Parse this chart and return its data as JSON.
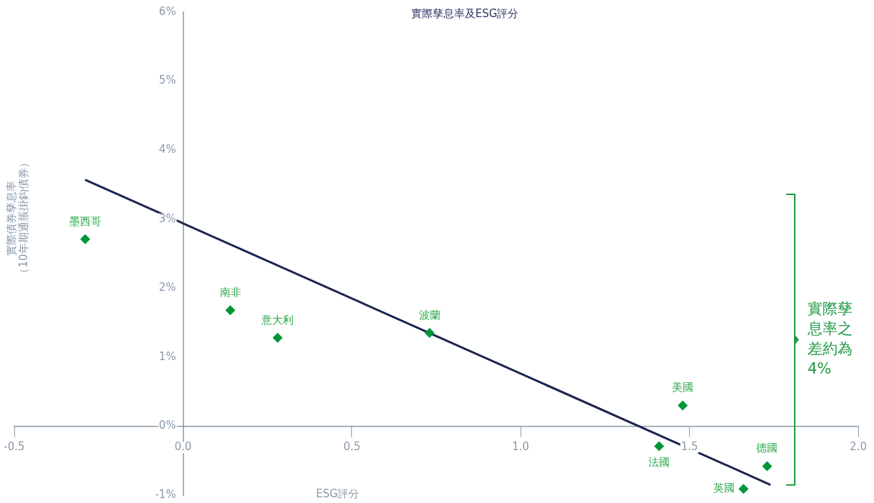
{
  "chart_data": {
    "type": "scatter",
    "title": "實際孳息率及ESG評分",
    "xlabel": "ESG評分",
    "ylabel": "實際債券孳息率（10年期通脹掛鈎債券）",
    "xlim": [
      -0.5,
      2.0
    ],
    "xticks": [
      -0.5,
      {
        "value": 0,
        "label": "0.0"
      },
      0.5,
      {
        "value": 1,
        "label": "1.0"
      },
      {
        "value": 1.5,
        "label": "1.5"
      },
      {
        "value": 2,
        "label": "2.0"
      }
    ],
    "ylim": [
      -1,
      6
    ],
    "yticks": [
      {
        "value": -1,
        "label": "-1%"
      },
      {
        "value": 0,
        "label": "0%"
      },
      {
        "value": 1,
        "label": "1%"
      },
      {
        "value": 2,
        "label": "2%"
      },
      {
        "value": 3,
        "label": "3%"
      },
      {
        "value": 4,
        "label": "4%"
      },
      {
        "value": 5,
        "label": "5%"
      },
      {
        "value": 6,
        "label": "6%"
      }
    ],
    "grid": false,
    "legend": false,
    "marker": "diamond",
    "series": [
      {
        "color": "#009639",
        "x": [
          -0.29,
          0.14,
          0.28,
          0.73,
          1.48,
          1.41,
          1.73,
          1.66
        ],
        "values": [
          2.71,
          1.68,
          1.28,
          1.35,
          0.3,
          -0.29,
          -0.58,
          -0.91
        ]
      },
      {
        "type": "line",
        "color": "#1b2550",
        "marker": "none",
        "line_style": "solid",
        "x": [
          -0.29,
          1.74
        ],
        "values": [
          3.57,
          -0.85
        ]
      }
    ],
    "annotations": [
      {
        "text": "墨西哥",
        "x": -0.29,
        "y": 2.71
      },
      {
        "text": "南非",
        "x": 0.14,
        "y": 1.68
      },
      {
        "text": "意大利",
        "x": 0.28,
        "y": 1.28
      },
      {
        "text": "波蘭",
        "x": 0.73,
        "y": 1.35
      },
      {
        "text": "美國",
        "x": 1.48,
        "y": 0.3
      },
      {
        "text": "法國",
        "x": 1.41,
        "y": -0.29
      },
      {
        "text": "德國",
        "x": 1.73,
        "y": -0.58
      },
      {
        "text": "英國",
        "x": 1.66,
        "y": -0.91
      },
      "實際孳息率之差約為4%"
    ]
  }
}
